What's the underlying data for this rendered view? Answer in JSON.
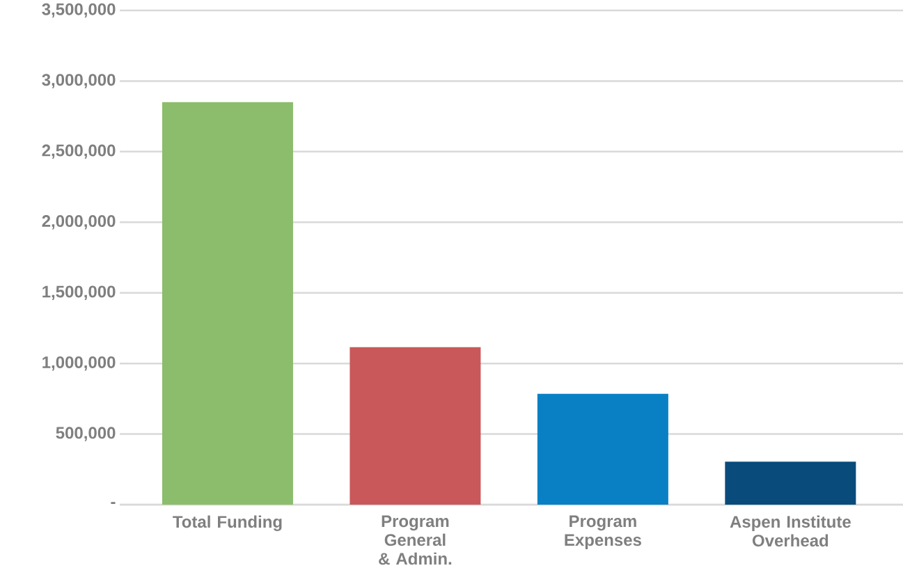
{
  "chart_data": {
    "type": "bar",
    "categories": [
      "Total Funding",
      "Program General & Admin.",
      "Program Expenses",
      "Aspen Institute Overhead"
    ],
    "values": [
      2850000,
      1115000,
      785000,
      305000
    ],
    "colors": [
      "#8bbd6c",
      "#c9585b",
      "#0a80c4",
      "#094b7b"
    ],
    "ylim": [
      0,
      3500000
    ],
    "yticks": [
      {
        "value": 0,
        "label": "-"
      },
      {
        "value": 500000,
        "label": "500,000"
      },
      {
        "value": 1000000,
        "label": "1,000,000"
      },
      {
        "value": 1500000,
        "label": "1,500,000"
      },
      {
        "value": 2000000,
        "label": "2,000,000"
      },
      {
        "value": 2500000,
        "label": "2,500,000"
      },
      {
        "value": 3000000,
        "label": "3,000,000"
      },
      {
        "value": 3500000,
        "label": "3,500,000"
      }
    ],
    "grid": "y"
  }
}
